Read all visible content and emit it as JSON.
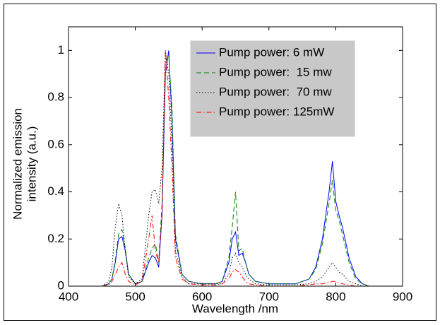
{
  "chart_data": {
    "type": "line",
    "xlabel": "Wavelength /nm",
    "ylabel": [
      "Normalized emission",
      "intensity (a.u.)"
    ],
    "xlim": [
      400,
      900
    ],
    "xticks": [
      400,
      500,
      600,
      700,
      800,
      900
    ],
    "ylim": [
      0,
      1.1
    ],
    "yticks": [
      0,
      0.2,
      0.4,
      0.6,
      0.8,
      1
    ],
    "legend": "north",
    "x": [
      450,
      460,
      465,
      470,
      475,
      480,
      485,
      490,
      500,
      510,
      520,
      525,
      530,
      535,
      540,
      545,
      550,
      555,
      560,
      570,
      580,
      600,
      620,
      630,
      640,
      645,
      650,
      655,
      660,
      665,
      670,
      680,
      700,
      740,
      760,
      770,
      780,
      790,
      795,
      800,
      805,
      810,
      820,
      830,
      840,
      850
    ],
    "series": [
      {
        "name": "Pump power: 6 mW",
        "color": "#0000ff",
        "linestyle": "-",
        "values": [
          0,
          0.01,
          0.03,
          0.1,
          0.2,
          0.21,
          0.15,
          0.05,
          0.01,
          0.02,
          0.1,
          0.13,
          0.12,
          0.08,
          0.3,
          0.9,
          1.0,
          0.7,
          0.2,
          0.05,
          0.02,
          0.01,
          0.01,
          0.02,
          0.1,
          0.2,
          0.23,
          0.13,
          0.14,
          0.1,
          0.05,
          0.02,
          0.01,
          0.01,
          0.03,
          0.08,
          0.2,
          0.4,
          0.53,
          0.36,
          0.3,
          0.25,
          0.12,
          0.04,
          0.01,
          0
        ]
      },
      {
        "name": "Pump power:  15 mw",
        "color": "#008000",
        "linestyle": "--",
        "values": [
          0,
          0.01,
          0.03,
          0.11,
          0.22,
          0.24,
          0.16,
          0.05,
          0.01,
          0.02,
          0.12,
          0.16,
          0.18,
          0.1,
          0.35,
          0.95,
          0.98,
          0.75,
          0.22,
          0.05,
          0.02,
          0.01,
          0.01,
          0.02,
          0.12,
          0.25,
          0.4,
          0.15,
          0.16,
          0.1,
          0.05,
          0.02,
          0.01,
          0.01,
          0.03,
          0.07,
          0.18,
          0.35,
          0.45,
          0.32,
          0.28,
          0.22,
          0.1,
          0.03,
          0.01,
          0
        ]
      },
      {
        "name": "Pump power:  70 mw",
        "color": "#000000",
        "linestyle": ":",
        "values": [
          0,
          0.02,
          0.08,
          0.25,
          0.35,
          0.3,
          0.15,
          0.04,
          0.01,
          0.03,
          0.3,
          0.4,
          0.41,
          0.35,
          0.5,
          1.0,
          0.9,
          0.6,
          0.15,
          0.04,
          0.01,
          0.01,
          0.01,
          0.01,
          0.05,
          0.12,
          0.14,
          0.1,
          0.08,
          0.05,
          0.03,
          0.01,
          0.005,
          0.005,
          0.01,
          0.02,
          0.04,
          0.08,
          0.1,
          0.08,
          0.06,
          0.05,
          0.02,
          0.01,
          0,
          0
        ]
      },
      {
        "name": "Pump power: 125mW",
        "color": "#ff0000",
        "linestyle": "-.",
        "values": [
          0,
          0.005,
          0.02,
          0.05,
          0.08,
          0.1,
          0.05,
          0.02,
          0.005,
          0.02,
          0.2,
          0.3,
          0.15,
          0.1,
          0.3,
          1.0,
          0.8,
          0.5,
          0.12,
          0.03,
          0.01,
          0.005,
          0.005,
          0.01,
          0.03,
          0.06,
          0.07,
          0.06,
          0.04,
          0.02,
          0.01,
          0.005,
          0,
          0,
          0.005,
          0.01,
          0.01,
          0.015,
          0.02,
          0.02,
          0.015,
          0.01,
          0.005,
          0,
          0,
          0
        ]
      }
    ]
  }
}
